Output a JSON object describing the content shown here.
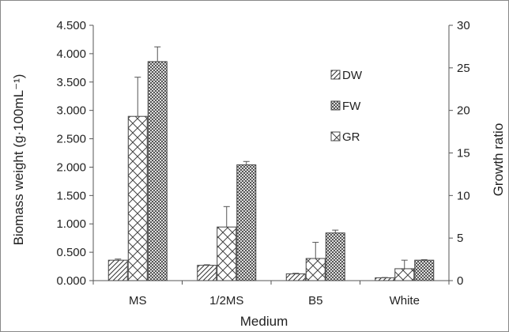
{
  "chart_data": {
    "type": "bar",
    "categories": [
      "MS",
      "1/2MS",
      "B5",
      "White"
    ],
    "xlabel": "Medium",
    "ylabel": "Biomass weight  (g·100mL⁻¹)",
    "y2label": "Growth ratio",
    "ylim": [
      0,
      4.5
    ],
    "y2lim": [
      0,
      30
    ],
    "yticks": [
      "0.000",
      "0.500",
      "1.000",
      "1.500",
      "2.000",
      "2.500",
      "3.000",
      "3.500",
      "4.000",
      "4.500"
    ],
    "y2ticks": [
      "0",
      "5",
      "10",
      "15",
      "20",
      "25",
      "30"
    ],
    "grid": false,
    "legend_position": "top-right",
    "series": [
      {
        "name": "DW",
        "axis": "left",
        "pattern": "diagonal-hatch",
        "values": [
          0.36,
          0.27,
          0.12,
          0.05
        ],
        "errors": [
          0.02,
          0.01,
          0.01,
          0.005
        ]
      },
      {
        "name": "GR",
        "axis": "right",
        "pattern": "cross-hatch",
        "values": [
          19.3,
          6.3,
          2.6,
          1.4
        ],
        "errors": [
          4.6,
          2.4,
          1.9,
          1.0
        ]
      },
      {
        "name": "FW",
        "axis": "left",
        "pattern": "dense-check",
        "values": [
          3.86,
          2.04,
          0.84,
          0.36
        ],
        "errors": [
          0.26,
          0.06,
          0.05,
          0.01
        ]
      }
    ],
    "legend_order": [
      "DW",
      "FW",
      "GR"
    ]
  }
}
